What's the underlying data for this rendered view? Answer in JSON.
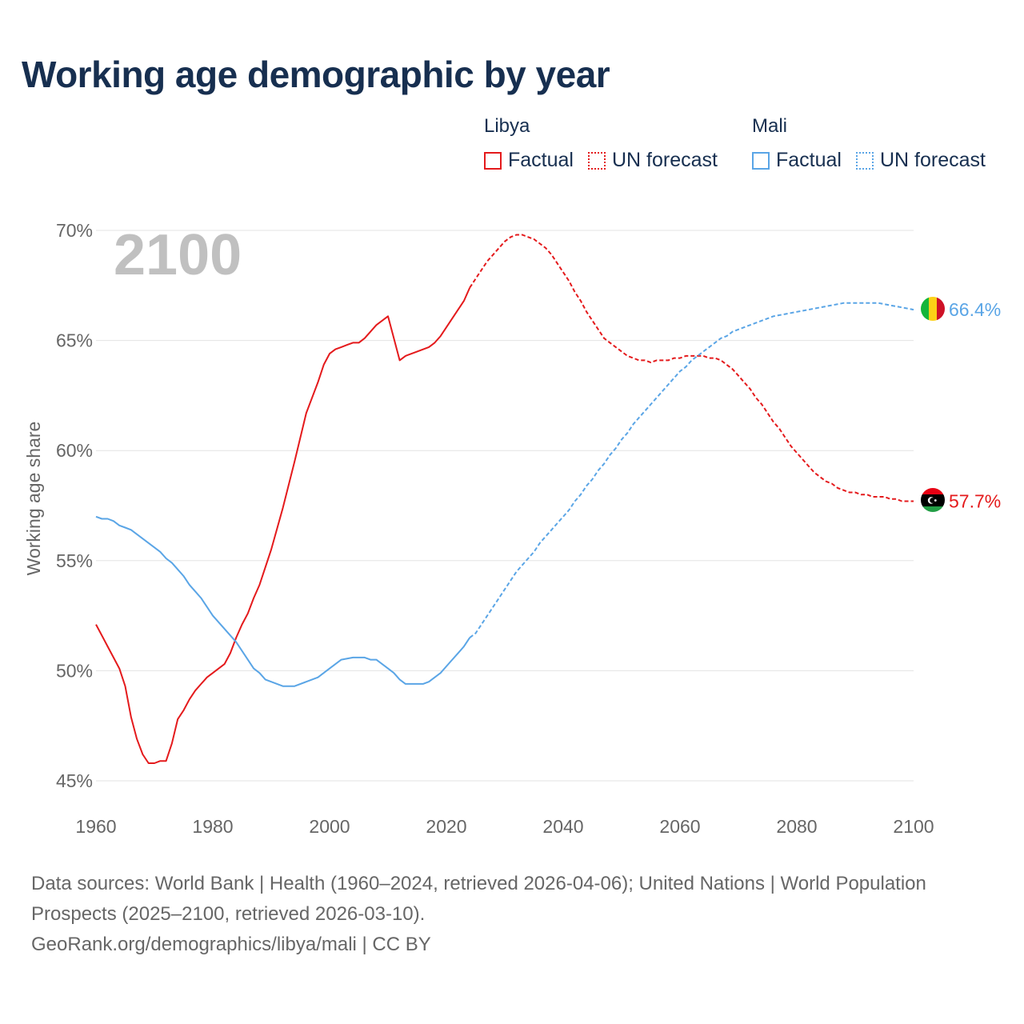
{
  "title": "Working age demographic by year",
  "legend": {
    "groups": [
      {
        "name": "Libya",
        "factual_label": "Factual",
        "forecast_label": "UN forecast",
        "color": "#e41a1c"
      },
      {
        "name": "Mali",
        "factual_label": "Factual",
        "forecast_label": "UN forecast",
        "color": "#5aa5e6"
      }
    ]
  },
  "chart_data": {
    "type": "line",
    "title": "Working age demographic by year",
    "year_overlay": "2100",
    "xlabel": "",
    "ylabel": "Working age share",
    "xlim": [
      1960,
      2100
    ],
    "ylim": [
      45,
      70
    ],
    "x_ticks": [
      "1960",
      "1980",
      "2000",
      "2020",
      "2040",
      "2060",
      "2080",
      "2100"
    ],
    "y_ticks": [
      "45%",
      "50%",
      "55%",
      "60%",
      "65%",
      "70%"
    ],
    "grid": true,
    "factual_end_year": 2024,
    "series": [
      {
        "name": "Libya",
        "color": "#e41a1c",
        "end_label": "57.7%",
        "points": [
          [
            1960,
            52.1
          ],
          [
            1962,
            51.1
          ],
          [
            1964,
            50.1
          ],
          [
            1965,
            49.3
          ],
          [
            1966,
            47.9
          ],
          [
            1967,
            46.9
          ],
          [
            1968,
            46.2
          ],
          [
            1969,
            45.8
          ],
          [
            1970,
            45.8
          ],
          [
            1971,
            45.9
          ],
          [
            1972,
            45.9
          ],
          [
            1973,
            46.7
          ],
          [
            1974,
            47.8
          ],
          [
            1975,
            48.2
          ],
          [
            1976,
            48.7
          ],
          [
            1977,
            49.1
          ],
          [
            1978,
            49.4
          ],
          [
            1979,
            49.7
          ],
          [
            1980,
            49.9
          ],
          [
            1982,
            50.3
          ],
          [
            1983,
            50.8
          ],
          [
            1984,
            51.5
          ],
          [
            1985,
            52.1
          ],
          [
            1986,
            52.6
          ],
          [
            1987,
            53.3
          ],
          [
            1988,
            53.9
          ],
          [
            1990,
            55.5
          ],
          [
            1992,
            57.4
          ],
          [
            1994,
            59.5
          ],
          [
            1996,
            61.7
          ],
          [
            1998,
            63.1
          ],
          [
            1999,
            63.9
          ],
          [
            2000,
            64.4
          ],
          [
            2001,
            64.6
          ],
          [
            2002,
            64.7
          ],
          [
            2003,
            64.8
          ],
          [
            2004,
            64.9
          ],
          [
            2005,
            64.9
          ],
          [
            2006,
            65.1
          ],
          [
            2007,
            65.4
          ],
          [
            2008,
            65.7
          ],
          [
            2010,
            66.1
          ],
          [
            2011,
            65.1
          ],
          [
            2012,
            64.1
          ],
          [
            2013,
            64.3
          ],
          [
            2015,
            64.5
          ],
          [
            2017,
            64.7
          ],
          [
            2018,
            64.9
          ],
          [
            2019,
            65.2
          ],
          [
            2020,
            65.6
          ],
          [
            2022,
            66.4
          ],
          [
            2023,
            66.8
          ],
          [
            2024,
            67.4
          ],
          [
            2025,
            67.8
          ],
          [
            2026,
            68.2
          ],
          [
            2027,
            68.6
          ],
          [
            2028,
            68.9
          ],
          [
            2029,
            69.2
          ],
          [
            2030,
            69.5
          ],
          [
            2031,
            69.7
          ],
          [
            2032,
            69.8
          ],
          [
            2033,
            69.8
          ],
          [
            2034,
            69.7
          ],
          [
            2035,
            69.6
          ],
          [
            2036,
            69.4
          ],
          [
            2037,
            69.2
          ],
          [
            2038,
            68.9
          ],
          [
            2039,
            68.5
          ],
          [
            2040,
            68.1
          ],
          [
            2041,
            67.7
          ],
          [
            2042,
            67.2
          ],
          [
            2043,
            66.8
          ],
          [
            2044,
            66.3
          ],
          [
            2045,
            65.9
          ],
          [
            2046,
            65.5
          ],
          [
            2047,
            65.1
          ],
          [
            2048,
            64.9
          ],
          [
            2049,
            64.7
          ],
          [
            2050,
            64.5
          ],
          [
            2051,
            64.3
          ],
          [
            2052,
            64.2
          ],
          [
            2053,
            64.1
          ],
          [
            2054,
            64.1
          ],
          [
            2055,
            64.0
          ],
          [
            2056,
            64.1
          ],
          [
            2057,
            64.1
          ],
          [
            2058,
            64.1
          ],
          [
            2059,
            64.2
          ],
          [
            2060,
            64.2
          ],
          [
            2061,
            64.3
          ],
          [
            2062,
            64.3
          ],
          [
            2063,
            64.3
          ],
          [
            2064,
            64.3
          ],
          [
            2065,
            64.2
          ],
          [
            2066,
            64.2
          ],
          [
            2067,
            64.1
          ],
          [
            2068,
            63.9
          ],
          [
            2069,
            63.7
          ],
          [
            2070,
            63.4
          ],
          [
            2071,
            63.1
          ],
          [
            2072,
            62.8
          ],
          [
            2073,
            62.4
          ],
          [
            2074,
            62.1
          ],
          [
            2075,
            61.7
          ],
          [
            2076,
            61.3
          ],
          [
            2077,
            61.0
          ],
          [
            2078,
            60.6
          ],
          [
            2079,
            60.2
          ],
          [
            2080,
            59.9
          ],
          [
            2081,
            59.6
          ],
          [
            2082,
            59.3
          ],
          [
            2083,
            59.0
          ],
          [
            2084,
            58.8
          ],
          [
            2085,
            58.6
          ],
          [
            2086,
            58.5
          ],
          [
            2087,
            58.3
          ],
          [
            2088,
            58.2
          ],
          [
            2089,
            58.1
          ],
          [
            2090,
            58.1
          ],
          [
            2091,
            58.0
          ],
          [
            2092,
            58.0
          ],
          [
            2093,
            57.9
          ],
          [
            2094,
            57.9
          ],
          [
            2095,
            57.9
          ],
          [
            2096,
            57.8
          ],
          [
            2097,
            57.8
          ],
          [
            2098,
            57.7
          ],
          [
            2099,
            57.7
          ],
          [
            2100,
            57.7
          ]
        ]
      },
      {
        "name": "Mali",
        "color": "#5aa5e6",
        "end_label": "66.4%",
        "points": [
          [
            1960,
            57.0
          ],
          [
            1961,
            56.9
          ],
          [
            1962,
            56.9
          ],
          [
            1963,
            56.8
          ],
          [
            1964,
            56.6
          ],
          [
            1965,
            56.5
          ],
          [
            1966,
            56.4
          ],
          [
            1967,
            56.2
          ],
          [
            1968,
            56.0
          ],
          [
            1969,
            55.8
          ],
          [
            1970,
            55.6
          ],
          [
            1971,
            55.4
          ],
          [
            1972,
            55.1
          ],
          [
            1973,
            54.9
          ],
          [
            1974,
            54.6
          ],
          [
            1975,
            54.3
          ],
          [
            1976,
            53.9
          ],
          [
            1977,
            53.6
          ],
          [
            1978,
            53.3
          ],
          [
            1979,
            52.9
          ],
          [
            1980,
            52.5
          ],
          [
            1982,
            51.9
          ],
          [
            1984,
            51.3
          ],
          [
            1985,
            50.9
          ],
          [
            1986,
            50.5
          ],
          [
            1987,
            50.1
          ],
          [
            1988,
            49.9
          ],
          [
            1989,
            49.6
          ],
          [
            1990,
            49.5
          ],
          [
            1992,
            49.3
          ],
          [
            1994,
            49.3
          ],
          [
            1996,
            49.5
          ],
          [
            1998,
            49.7
          ],
          [
            2000,
            50.1
          ],
          [
            2001,
            50.3
          ],
          [
            2002,
            50.5
          ],
          [
            2004,
            50.6
          ],
          [
            2006,
            50.6
          ],
          [
            2007,
            50.5
          ],
          [
            2008,
            50.5
          ],
          [
            2009,
            50.3
          ],
          [
            2010,
            50.1
          ],
          [
            2011,
            49.9
          ],
          [
            2012,
            49.6
          ],
          [
            2013,
            49.4
          ],
          [
            2014,
            49.4
          ],
          [
            2015,
            49.4
          ],
          [
            2016,
            49.4
          ],
          [
            2017,
            49.5
          ],
          [
            2018,
            49.7
          ],
          [
            2019,
            49.9
          ],
          [
            2020,
            50.2
          ],
          [
            2021,
            50.5
          ],
          [
            2022,
            50.8
          ],
          [
            2023,
            51.1
          ],
          [
            2024,
            51.5
          ],
          [
            2025,
            51.7
          ],
          [
            2026,
            52.1
          ],
          [
            2027,
            52.5
          ],
          [
            2028,
            52.9
          ],
          [
            2029,
            53.3
          ],
          [
            2030,
            53.7
          ],
          [
            2031,
            54.1
          ],
          [
            2032,
            54.5
          ],
          [
            2033,
            54.8
          ],
          [
            2034,
            55.1
          ],
          [
            2035,
            55.4
          ],
          [
            2036,
            55.8
          ],
          [
            2037,
            56.1
          ],
          [
            2038,
            56.4
          ],
          [
            2039,
            56.7
          ],
          [
            2040,
            57.0
          ],
          [
            2041,
            57.3
          ],
          [
            2042,
            57.7
          ],
          [
            2043,
            58.0
          ],
          [
            2044,
            58.4
          ],
          [
            2045,
            58.7
          ],
          [
            2046,
            59.1
          ],
          [
            2047,
            59.4
          ],
          [
            2048,
            59.8
          ],
          [
            2049,
            60.1
          ],
          [
            2050,
            60.5
          ],
          [
            2051,
            60.8
          ],
          [
            2052,
            61.2
          ],
          [
            2053,
            61.5
          ],
          [
            2054,
            61.8
          ],
          [
            2055,
            62.1
          ],
          [
            2056,
            62.4
          ],
          [
            2057,
            62.7
          ],
          [
            2058,
            63.0
          ],
          [
            2059,
            63.3
          ],
          [
            2060,
            63.6
          ],
          [
            2061,
            63.8
          ],
          [
            2062,
            64.1
          ],
          [
            2063,
            64.3
          ],
          [
            2064,
            64.5
          ],
          [
            2065,
            64.7
          ],
          [
            2066,
            64.9
          ],
          [
            2067,
            65.1
          ],
          [
            2068,
            65.2
          ],
          [
            2069,
            65.4
          ],
          [
            2070,
            65.5
          ],
          [
            2072,
            65.7
          ],
          [
            2074,
            65.9
          ],
          [
            2076,
            66.1
          ],
          [
            2078,
            66.2
          ],
          [
            2080,
            66.3
          ],
          [
            2082,
            66.4
          ],
          [
            2084,
            66.5
          ],
          [
            2086,
            66.6
          ],
          [
            2088,
            66.7
          ],
          [
            2090,
            66.7
          ],
          [
            2092,
            66.7
          ],
          [
            2094,
            66.7
          ],
          [
            2096,
            66.6
          ],
          [
            2098,
            66.5
          ],
          [
            2100,
            66.4
          ]
        ]
      }
    ]
  },
  "sources": {
    "line1": "Data sources: World Bank | Health (1960–2024, retrieved 2026-04-06); United Nations | World Population Prospects (2025–2100, retrieved 2026-03-10).",
    "line2": "GeoRank.org/demographics/libya/mali | CC BY"
  }
}
